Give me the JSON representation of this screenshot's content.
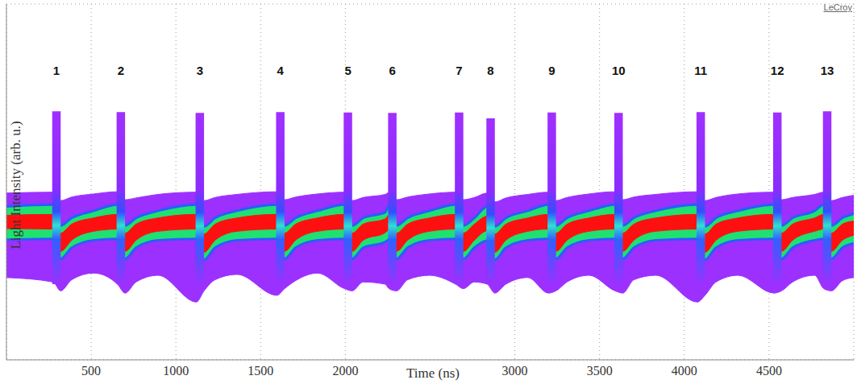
{
  "chart_data": {
    "type": "area",
    "title": "LeCroy",
    "xlabel": "Time (ns)",
    "ylabel": "Light Intensity (arb. u.)",
    "xlim": [
      0,
      5000
    ],
    "xticks": [
      500,
      1000,
      1500,
      2000,
      3000,
      3500,
      4000,
      4500
    ],
    "ylim": [
      0,
      8
    ],
    "yticks": [
      1,
      2,
      3,
      4,
      5,
      6,
      7
    ],
    "grid": true,
    "tick_labels": "x",
    "x": [
      0,
      275,
      320,
      385,
      515,
      655,
      700,
      765,
      895,
      1121,
      1166,
      1231,
      1361,
      1596,
      1641,
      1706,
      1836,
      1995,
      2040,
      2105,
      2235,
      2257,
      2302,
      2367,
      2497,
      2651,
      2696,
      2761,
      2837,
      2882,
      2947,
      3077,
      3198,
      3243,
      3308,
      3438,
      3592,
      3637,
      3702,
      3832,
      4077,
      4122,
      4187,
      4317,
      4529,
      4574,
      4639,
      4769,
      4823,
      4868,
      4933,
      5000
    ],
    "series": [
      {
        "color": "#9b30ff",
        "values": [
          [
            1.85,
            3.75
          ],
          [
            1.75,
            3.77
          ],
          [
            1.55,
            3.58
          ],
          [
            1.8,
            3.66
          ],
          [
            1.95,
            3.73
          ],
          [
            1.7,
            3.78
          ],
          [
            1.5,
            3.6
          ],
          [
            1.75,
            3.64
          ],
          [
            1.9,
            3.72
          ],
          [
            1.3,
            3.77
          ],
          [
            1.55,
            3.58
          ],
          [
            1.8,
            3.65
          ],
          [
            1.92,
            3.72
          ],
          [
            1.45,
            3.78
          ],
          [
            1.6,
            3.6
          ],
          [
            1.78,
            3.66
          ],
          [
            1.95,
            3.73
          ],
          [
            1.6,
            3.77
          ],
          [
            1.55,
            3.58
          ],
          [
            1.75,
            3.65
          ],
          [
            1.7,
            3.72
          ],
          [
            1.6,
            3.76
          ],
          [
            1.55,
            3.6
          ],
          [
            1.8,
            3.66
          ],
          [
            1.9,
            3.73
          ],
          [
            1.7,
            3.77
          ],
          [
            1.6,
            3.6
          ],
          [
            1.75,
            3.65
          ],
          [
            1.7,
            3.75
          ],
          [
            1.5,
            3.55
          ],
          [
            1.7,
            3.64
          ],
          [
            1.85,
            3.72
          ],
          [
            1.5,
            3.77
          ],
          [
            1.55,
            3.58
          ],
          [
            1.75,
            3.65
          ],
          [
            1.9,
            3.73
          ],
          [
            1.55,
            3.78
          ],
          [
            1.5,
            3.6
          ],
          [
            1.8,
            3.66
          ],
          [
            1.9,
            3.72
          ],
          [
            1.3,
            3.78
          ],
          [
            1.45,
            3.58
          ],
          [
            1.75,
            3.65
          ],
          [
            1.9,
            3.73
          ],
          [
            1.5,
            3.77
          ],
          [
            1.55,
            3.6
          ],
          [
            1.75,
            3.65
          ],
          [
            1.9,
            3.72
          ],
          [
            1.6,
            3.77
          ],
          [
            1.55,
            3.58
          ],
          [
            1.78,
            3.65
          ],
          [
            1.85,
            3.7
          ]
        ]
      },
      {
        "color": "#20e070",
        "values": [
          [
            2.7,
            3.45
          ],
          [
            2.72,
            3.49
          ],
          [
            2.27,
            3.02
          ],
          [
            2.52,
            3.19
          ],
          [
            2.69,
            3.35
          ],
          [
            2.72,
            3.49
          ],
          [
            2.27,
            3.02
          ],
          [
            2.52,
            3.19
          ],
          [
            2.69,
            3.35
          ],
          [
            2.72,
            3.49
          ],
          [
            2.25,
            3.0
          ],
          [
            2.52,
            3.19
          ],
          [
            2.69,
            3.35
          ],
          [
            2.72,
            3.49
          ],
          [
            2.27,
            3.02
          ],
          [
            2.52,
            3.19
          ],
          [
            2.69,
            3.35
          ],
          [
            2.72,
            3.49
          ],
          [
            2.27,
            3.02
          ],
          [
            2.52,
            3.19
          ],
          [
            2.65,
            3.32
          ],
          [
            2.7,
            3.47
          ],
          [
            2.27,
            3.02
          ],
          [
            2.52,
            3.19
          ],
          [
            2.69,
            3.35
          ],
          [
            2.72,
            3.49
          ],
          [
            2.27,
            3.02
          ],
          [
            2.52,
            3.19
          ],
          [
            2.68,
            3.45
          ],
          [
            2.25,
            3.0
          ],
          [
            2.52,
            3.19
          ],
          [
            2.69,
            3.35
          ],
          [
            2.72,
            3.49
          ],
          [
            2.27,
            3.02
          ],
          [
            2.52,
            3.19
          ],
          [
            2.69,
            3.35
          ],
          [
            2.72,
            3.49
          ],
          [
            2.27,
            3.02
          ],
          [
            2.52,
            3.19
          ],
          [
            2.69,
            3.35
          ],
          [
            2.72,
            3.49
          ],
          [
            2.25,
            3.0
          ],
          [
            2.52,
            3.19
          ],
          [
            2.69,
            3.35
          ],
          [
            2.72,
            3.49
          ],
          [
            2.27,
            3.02
          ],
          [
            2.52,
            3.19
          ],
          [
            2.69,
            3.35
          ],
          [
            2.72,
            3.49
          ],
          [
            2.27,
            3.02
          ],
          [
            2.52,
            3.19
          ],
          [
            2.62,
            3.28
          ]
        ]
      },
      {
        "color": "#ff1010",
        "values": [
          [
            2.95,
            3.25
          ],
          [
            2.94,
            3.27
          ],
          [
            2.44,
            2.85
          ],
          [
            2.69,
            3.05
          ],
          [
            2.89,
            3.19
          ],
          [
            2.94,
            3.27
          ],
          [
            2.44,
            2.85
          ],
          [
            2.69,
            3.05
          ],
          [
            2.89,
            3.19
          ],
          [
            2.94,
            3.27
          ],
          [
            2.42,
            2.83
          ],
          [
            2.69,
            3.05
          ],
          [
            2.89,
            3.19
          ],
          [
            2.94,
            3.27
          ],
          [
            2.44,
            2.85
          ],
          [
            2.69,
            3.05
          ],
          [
            2.89,
            3.19
          ],
          [
            2.94,
            3.27
          ],
          [
            2.44,
            2.85
          ],
          [
            2.69,
            3.05
          ],
          [
            2.86,
            3.17
          ],
          [
            2.92,
            3.25
          ],
          [
            2.44,
            2.85
          ],
          [
            2.69,
            3.05
          ],
          [
            2.89,
            3.19
          ],
          [
            2.94,
            3.27
          ],
          [
            2.44,
            2.85
          ],
          [
            2.69,
            3.05
          ],
          [
            2.9,
            3.23
          ],
          [
            2.42,
            2.83
          ],
          [
            2.69,
            3.05
          ],
          [
            2.89,
            3.19
          ],
          [
            2.94,
            3.27
          ],
          [
            2.44,
            2.85
          ],
          [
            2.69,
            3.05
          ],
          [
            2.89,
            3.19
          ],
          [
            2.94,
            3.27
          ],
          [
            2.44,
            2.85
          ],
          [
            2.69,
            3.05
          ],
          [
            2.89,
            3.19
          ],
          [
            2.94,
            3.27
          ],
          [
            2.42,
            2.83
          ],
          [
            2.69,
            3.05
          ],
          [
            2.89,
            3.19
          ],
          [
            2.94,
            3.27
          ],
          [
            2.44,
            2.85
          ],
          [
            2.69,
            3.05
          ],
          [
            2.89,
            3.19
          ],
          [
            2.94,
            3.27
          ],
          [
            2.44,
            2.85
          ],
          [
            2.69,
            3.05
          ],
          [
            2.8,
            3.12
          ]
        ]
      }
    ],
    "pulses": {
      "start": [
        270,
        650,
        1116,
        1591,
        1990,
        2252,
        2646,
        2832,
        3193,
        3587,
        4072,
        4524,
        4818
      ],
      "end": [
        320,
        700,
        1166,
        1641,
        2040,
        2302,
        2696,
        2882,
        3243,
        3637,
        4122,
        4574,
        4868
      ],
      "base": [
        1.7,
        1.7,
        1.7,
        1.7,
        1.7,
        1.7,
        1.7,
        1.7,
        1.7,
        1.7,
        1.7,
        1.7,
        1.7
      ],
      "peak": [
        5.59,
        5.57,
        5.55,
        5.57,
        5.56,
        5.55,
        5.56,
        5.43,
        5.56,
        5.55,
        5.57,
        5.56,
        5.59
      ]
    },
    "annotations": [
      {
        "text": "1",
        "x": 295,
        "y": 6.5
      },
      {
        "text": "2",
        "x": 675,
        "y": 6.5
      },
      {
        "text": "3",
        "x": 1141,
        "y": 6.5
      },
      {
        "text": "4",
        "x": 1616,
        "y": 6.5
      },
      {
        "text": "5",
        "x": 2015,
        "y": 6.5
      },
      {
        "text": "6",
        "x": 2277,
        "y": 6.5
      },
      {
        "text": "7",
        "x": 2671,
        "y": 6.5
      },
      {
        "text": "8",
        "x": 2857,
        "y": 6.5
      },
      {
        "text": "9",
        "x": 3218,
        "y": 6.5
      },
      {
        "text": "10",
        "x": 3612,
        "y": 6.5
      },
      {
        "text": "11",
        "x": 4097,
        "y": 6.5
      },
      {
        "text": "12",
        "x": 4549,
        "y": 6.5
      },
      {
        "text": "13",
        "x": 4843,
        "y": 6.5
      }
    ]
  }
}
